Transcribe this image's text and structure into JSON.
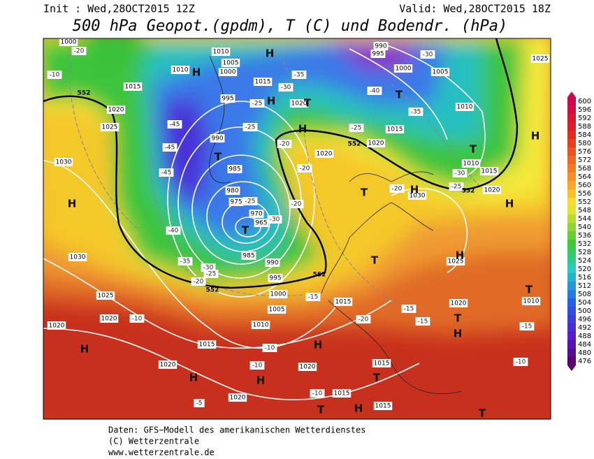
{
  "header": {
    "init": "Init : Wed,28OCT2015 12Z",
    "valid": "Valid: Wed,28OCT2015 18Z",
    "title": "500 hPa Geopot.(gpdm), T (C) und Bodendr. (hPa)"
  },
  "legend": {
    "levels": [
      600,
      596,
      592,
      588,
      584,
      580,
      576,
      572,
      568,
      564,
      560,
      556,
      552,
      548,
      544,
      540,
      536,
      532,
      528,
      524,
      520,
      516,
      512,
      508,
      504,
      500,
      496,
      492,
      488,
      484,
      480,
      476
    ]
  },
  "map": {
    "pressure_labels": [
      "1000",
      "1010",
      "1005",
      "1000",
      "1010",
      "1015",
      "1015",
      "995",
      "1020",
      "1025",
      "990",
      "1020",
      "985",
      "980",
      "975",
      "970",
      "965",
      "985",
      "990",
      "995",
      "1000",
      "1005",
      "1010",
      "1015",
      "1020",
      "1015",
      "1020",
      "1030",
      "1025",
      "1020",
      "1010",
      "1010",
      "1005",
      "1000",
      "995",
      "990",
      "1010",
      "1015",
      "1020",
      "1030",
      "1030",
      "1025",
      "1020",
      "1020",
      "1015",
      "1020",
      "1020",
      "1020",
      "1015",
      "1015",
      "1015",
      "1025"
    ],
    "temperature_labels": [
      "-20",
      "-10",
      "-35",
      "-30",
      "-25",
      "-25",
      "-20",
      "-20",
      "-20",
      "-25",
      "-30",
      "-40",
      "-35",
      "-30",
      "-25",
      "-20",
      "-45",
      "-45",
      "-45",
      "-40",
      "-35",
      "-30",
      "-25",
      "-20",
      "-15",
      "-15",
      "-15",
      "-15",
      "-10",
      "-10",
      "-10",
      "-10",
      "-10",
      "-20",
      "-5",
      "-30",
      "-25"
    ],
    "centers": [
      "H",
      "H",
      "H",
      "H",
      "T",
      "T",
      "T",
      "T",
      "T",
      "H",
      "T",
      "H",
      "H",
      "H",
      "T",
      "H",
      "T",
      "T",
      "H",
      "H",
      "H",
      "H",
      "H",
      "T",
      "T",
      "H",
      "T"
    ],
    "height_labels": [
      "552",
      "552",
      "552",
      "552",
      "552"
    ]
  },
  "footer": {
    "line1": "Daten: GFS−Modell des amerikanischen Wetterdienstes",
    "line2": "(C) Wetterzentrale",
    "line3": "www.wetterzentrale.de"
  }
}
